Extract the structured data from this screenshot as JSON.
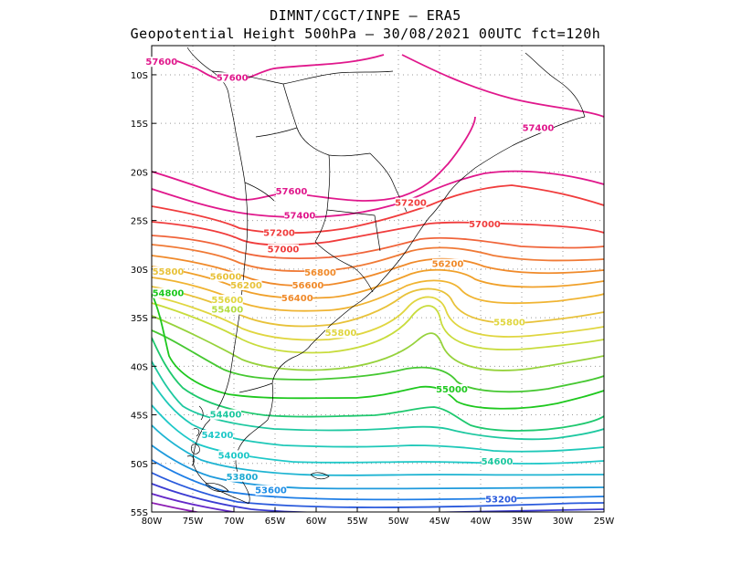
{
  "header": {
    "line1": "DIMNT/CGCT/INPE –  ERA5",
    "line2": "Geopotential Height 500hPa –  30/08/2021 00UTC fct=120h"
  },
  "map": {
    "lon_range": [
      -80,
      -25
    ],
    "lat_range": [
      -55,
      -7
    ],
    "lat_ticks": [
      {
        "value": -10,
        "label": "10S"
      },
      {
        "value": -15,
        "label": "15S"
      },
      {
        "value": -20,
        "label": "20S"
      },
      {
        "value": -25,
        "label": "25S"
      },
      {
        "value": -30,
        "label": "30S"
      },
      {
        "value": -35,
        "label": "35S"
      },
      {
        "value": -40,
        "label": "40S"
      },
      {
        "value": -45,
        "label": "45S"
      },
      {
        "value": -50,
        "label": "50S"
      },
      {
        "value": -55,
        "label": "55S"
      }
    ],
    "lon_ticks": [
      {
        "value": -80,
        "label": "80W"
      },
      {
        "value": -75,
        "label": "75W"
      },
      {
        "value": -70,
        "label": "70W"
      },
      {
        "value": -65,
        "label": "65W"
      },
      {
        "value": -60,
        "label": "60W"
      },
      {
        "value": -55,
        "label": "55W"
      },
      {
        "value": -50,
        "label": "50W"
      },
      {
        "value": -45,
        "label": "45W"
      },
      {
        "value": -40,
        "label": "40W"
      },
      {
        "value": -35,
        "label": "35W"
      },
      {
        "value": -30,
        "label": "30W"
      },
      {
        "value": -25,
        "label": "25W"
      }
    ],
    "contour_labels": [
      {
        "text": "57600",
        "lon": -78.8,
        "lat": -8.9,
        "color": "#e0188c"
      },
      {
        "text": "57600",
        "lon": -70.2,
        "lat": -10.5,
        "color": "#e0188c"
      },
      {
        "text": "57400",
        "lon": -33.0,
        "lat": -15.7,
        "color": "#e0188c"
      },
      {
        "text": "57600",
        "lon": -63.0,
        "lat": -22.2,
        "color": "#e0188c"
      },
      {
        "text": "57400",
        "lon": -62.0,
        "lat": -24.7,
        "color": "#e0188c"
      },
      {
        "text": "57200",
        "lon": -48.5,
        "lat": -23.4,
        "color": "#f03c3c"
      },
      {
        "text": "57000",
        "lon": -39.5,
        "lat": -25.6,
        "color": "#f03c3c"
      },
      {
        "text": "57200",
        "lon": -64.5,
        "lat": -26.5,
        "color": "#f03c3c"
      },
      {
        "text": "57000",
        "lon": -64.0,
        "lat": -28.2,
        "color": "#f03c3c"
      },
      {
        "text": "56200",
        "lon": -44.0,
        "lat": -29.7,
        "color": "#f08a2a"
      },
      {
        "text": "56800",
        "lon": -59.5,
        "lat": -30.6,
        "color": "#f08a2a"
      },
      {
        "text": "56600",
        "lon": -61.0,
        "lat": -31.9,
        "color": "#f08a2a"
      },
      {
        "text": "56400",
        "lon": -62.3,
        "lat": -33.2,
        "color": "#f08a2a"
      },
      {
        "text": "55800",
        "lon": -78.0,
        "lat": -30.5,
        "color": "#e8c23a"
      },
      {
        "text": "56000",
        "lon": -71.0,
        "lat": -31.0,
        "color": "#e8c23a"
      },
      {
        "text": "56200",
        "lon": -68.5,
        "lat": -31.9,
        "color": "#e8c23a"
      },
      {
        "text": "55600",
        "lon": -70.8,
        "lat": -33.4,
        "color": "#e0d640"
      },
      {
        "text": "55400",
        "lon": -70.8,
        "lat": -34.4,
        "color": "#b4dc40"
      },
      {
        "text": "55800",
        "lon": -36.5,
        "lat": -35.7,
        "color": "#e0d640"
      },
      {
        "text": "55800",
        "lon": -57.0,
        "lat": -36.8,
        "color": "#e0d640"
      },
      {
        "text": "54800",
        "lon": -78.0,
        "lat": -32.7,
        "color": "#1ec81e"
      },
      {
        "text": "55000",
        "lon": -43.5,
        "lat": -42.6,
        "color": "#1ec81e"
      },
      {
        "text": "54600",
        "lon": -38.0,
        "lat": -50.0,
        "color": "#1ec8a0"
      },
      {
        "text": "54400",
        "lon": -71.0,
        "lat": -45.2,
        "color": "#1ec8a0"
      },
      {
        "text": "54200",
        "lon": -72.0,
        "lat": -47.3,
        "color": "#1ec8c8"
      },
      {
        "text": "54000",
        "lon": -70.0,
        "lat": -49.4,
        "color": "#1ec8c8"
      },
      {
        "text": "53800",
        "lon": -69.0,
        "lat": -51.6,
        "color": "#1eaad2"
      },
      {
        "text": "53600",
        "lon": -65.5,
        "lat": -53.0,
        "color": "#1e8ee6"
      },
      {
        "text": "53200",
        "lon": -37.5,
        "lat": -53.9,
        "color": "#2a5adc"
      }
    ]
  }
}
